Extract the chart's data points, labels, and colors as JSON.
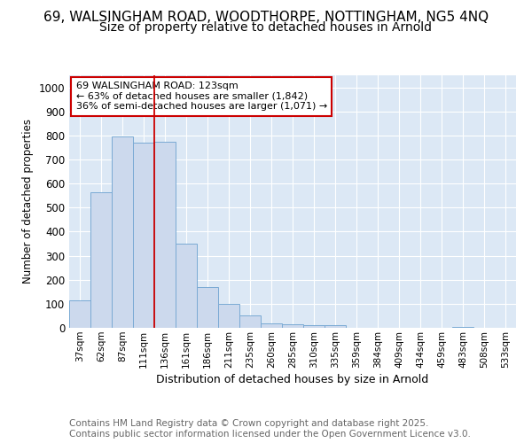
{
  "title1": "69, WALSINGHAM ROAD, WOODTHORPE, NOTTINGHAM, NG5 4NQ",
  "title2": "Size of property relative to detached houses in Arnold",
  "xlabel": "Distribution of detached houses by size in Arnold",
  "ylabel": "Number of detached properties",
  "categories": [
    "37sqm",
    "62sqm",
    "87sqm",
    "111sqm",
    "136sqm",
    "161sqm",
    "186sqm",
    "211sqm",
    "235sqm",
    "260sqm",
    "285sqm",
    "310sqm",
    "335sqm",
    "359sqm",
    "384sqm",
    "409sqm",
    "434sqm",
    "459sqm",
    "483sqm",
    "508sqm",
    "533sqm"
  ],
  "values": [
    115,
    565,
    795,
    770,
    775,
    350,
    168,
    100,
    53,
    20,
    15,
    10,
    10,
    0,
    0,
    0,
    0,
    0,
    5,
    0,
    0
  ],
  "bar_color": "#ccd9ed",
  "bar_edge_color": "#7aaad4",
  "annotation_line1": "69 WALSINGHAM ROAD: 123sqm",
  "annotation_line2": "← 63% of detached houses are smaller (1,842)",
  "annotation_line3": "36% of semi-detached houses are larger (1,071) →",
  "annotation_box_color": "#cc0000",
  "red_line_x": 3.5,
  "ylim": [
    0,
    1050
  ],
  "yticks": [
    0,
    100,
    200,
    300,
    400,
    500,
    600,
    700,
    800,
    900,
    1000
  ],
  "background_color": "#dce8f5",
  "grid_color": "#ffffff",
  "footer_text": "Contains HM Land Registry data © Crown copyright and database right 2025.\nContains public sector information licensed under the Open Government Licence v3.0.",
  "title1_fontsize": 11,
  "title2_fontsize": 10,
  "annot_fontsize": 8,
  "footer_fontsize": 7.5
}
